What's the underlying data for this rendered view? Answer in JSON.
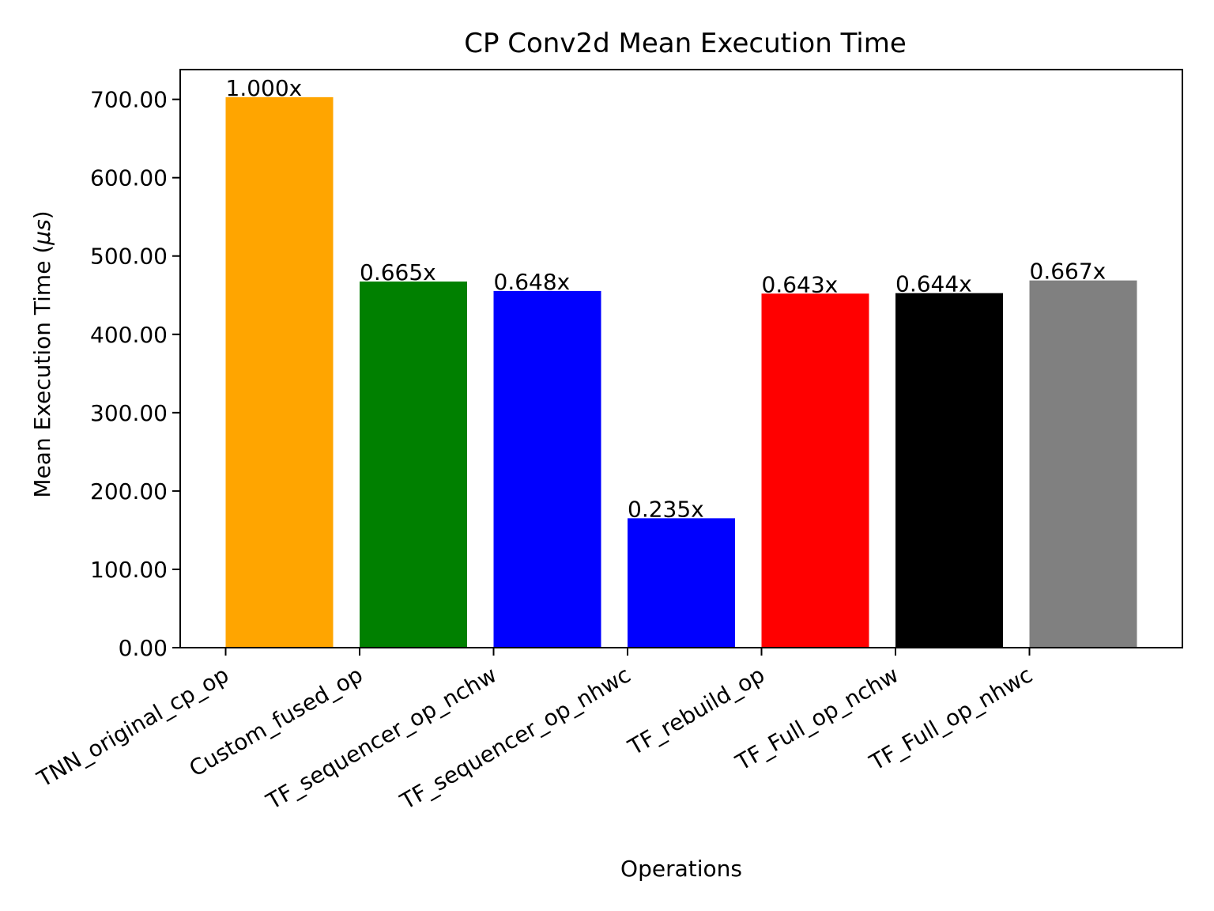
{
  "chart_data": {
    "type": "bar",
    "title": "CP Conv2d Mean Execution Time",
    "xlabel": "Operations",
    "ylabel": "Mean Execution Time (",
    "ylabel_symbol": "μs",
    "ylabel_close": ")",
    "categories": [
      "TNN_original_cp_op",
      "Custom_fused_op",
      "TF_sequencer_op_nchw",
      "TF_sequencer_op_nhwc",
      "TF_rebuild_op",
      "TF_Full_op_nchw",
      "TF_Full_op_nhwc"
    ],
    "values": [
      702.8,
      467.4,
      455.4,
      165.2,
      452.0,
      452.6,
      468.8
    ],
    "data_labels": [
      "1.000x",
      "0.665x",
      "0.648x",
      "0.235x",
      "0.643x",
      "0.644x",
      "0.667x"
    ],
    "colors": [
      "#FFA500",
      "#008000",
      "#0000FF",
      "#0000FF",
      "#FF0000",
      "#000000",
      "#808080"
    ],
    "ylim": [
      0,
      738
    ],
    "yticks": [
      0,
      100,
      200,
      300,
      400,
      500,
      600,
      700
    ],
    "ytick_labels": [
      "0.00",
      "100.00",
      "200.00",
      "300.00",
      "400.00",
      "500.00",
      "600.00",
      "700.00"
    ],
    "grid": false,
    "legend": "none"
  }
}
